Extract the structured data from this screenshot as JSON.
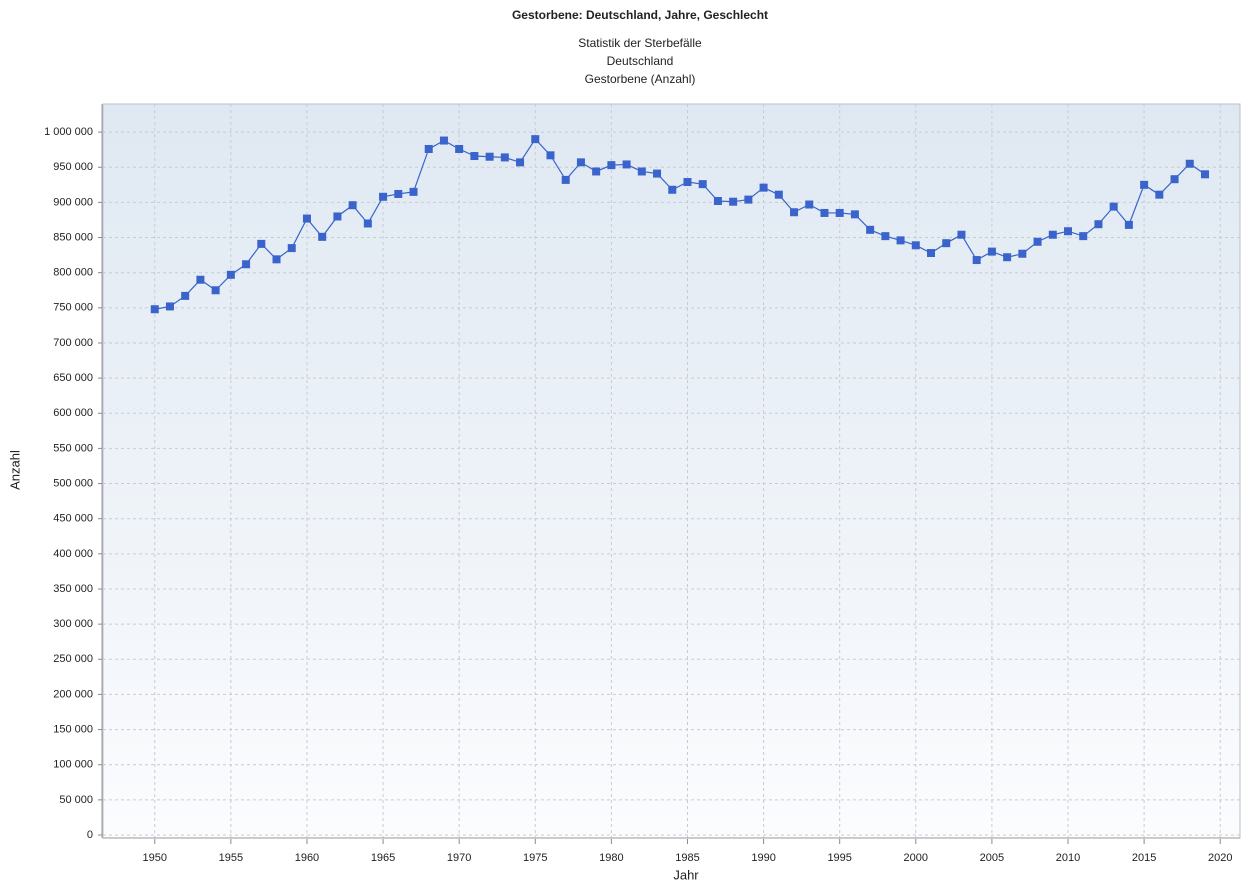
{
  "chart_data": {
    "type": "line",
    "title": "Gestorbene: Deutschland, Jahre, Geschlecht",
    "subtitle": [
      "Statistik der Sterbefälle",
      "Deutschland",
      "Gestorbene (Anzahl)"
    ],
    "x_label": "Jahr",
    "y_label": "Anzahl",
    "x": [
      1950,
      1951,
      1952,
      1953,
      1954,
      1955,
      1956,
      1957,
      1958,
      1959,
      1960,
      1961,
      1962,
      1963,
      1964,
      1965,
      1966,
      1967,
      1968,
      1969,
      1970,
      1971,
      1972,
      1973,
      1974,
      1975,
      1976,
      1977,
      1978,
      1979,
      1980,
      1981,
      1982,
      1983,
      1984,
      1985,
      1986,
      1987,
      1988,
      1989,
      1990,
      1991,
      1992,
      1993,
      1994,
      1995,
      1996,
      1997,
      1998,
      1999,
      2000,
      2001,
      2002,
      2003,
      2004,
      2005,
      2006,
      2007,
      2008,
      2009,
      2010,
      2011,
      2012,
      2013,
      2014,
      2015,
      2016,
      2017,
      2018,
      2019
    ],
    "series": [
      {
        "name": "Gestorbene",
        "color": "#3a64cc",
        "values": [
          748000,
          752000,
          767000,
          790000,
          775000,
          797000,
          812000,
          841000,
          819000,
          835000,
          877000,
          851000,
          880000,
          896000,
          870000,
          908000,
          912000,
          915000,
          976000,
          988000,
          976000,
          966000,
          965000,
          964000,
          957000,
          990000,
          967000,
          932000,
          957000,
          944000,
          953000,
          954000,
          944000,
          941000,
          918000,
          929000,
          926000,
          902000,
          901000,
          904000,
          921000,
          911000,
          886000,
          897000,
          885000,
          885000,
          883000,
          861000,
          852000,
          846000,
          839000,
          828000,
          842000,
          854000,
          818000,
          830000,
          822000,
          827000,
          844000,
          854000,
          859000,
          852000,
          869000,
          894000,
          868000,
          925000,
          911000,
          933000,
          955000,
          940000
        ]
      }
    ],
    "xlim": [
      1946.6,
      2021.3
    ],
    "xticks": [
      1950,
      1955,
      1960,
      1965,
      1970,
      1975,
      1980,
      1985,
      1990,
      1995,
      2000,
      2005,
      2010,
      2015,
      2020
    ],
    "ylim": [
      0,
      1040000
    ],
    "yticks": [
      0,
      {
        "value": 50000,
        "label": "50 000"
      },
      {
        "value": 100000,
        "label": "100 000"
      },
      {
        "value": 150000,
        "label": "150 000"
      },
      {
        "value": 200000,
        "label": "200 000"
      },
      {
        "value": 250000,
        "label": "250 000"
      },
      {
        "value": 300000,
        "label": "300 000"
      },
      {
        "value": 350000,
        "label": "350 000"
      },
      {
        "value": 400000,
        "label": "400 000"
      },
      {
        "value": 450000,
        "label": "450 000"
      },
      {
        "value": 500000,
        "label": "500 000"
      },
      {
        "value": 550000,
        "label": "550 000"
      },
      {
        "value": 600000,
        "label": "600 000"
      },
      {
        "value": 650000,
        "label": "650 000"
      },
      {
        "value": 700000,
        "label": "700 000"
      },
      {
        "value": 750000,
        "label": "750 000"
      },
      {
        "value": 800000,
        "label": "800 000"
      },
      {
        "value": 850000,
        "label": "850 000"
      },
      {
        "value": 900000,
        "label": "900 000"
      },
      {
        "value": 950000,
        "label": "950 000"
      },
      {
        "value": 1000000,
        "label": "1 000 000"
      }
    ],
    "grid": true
  }
}
